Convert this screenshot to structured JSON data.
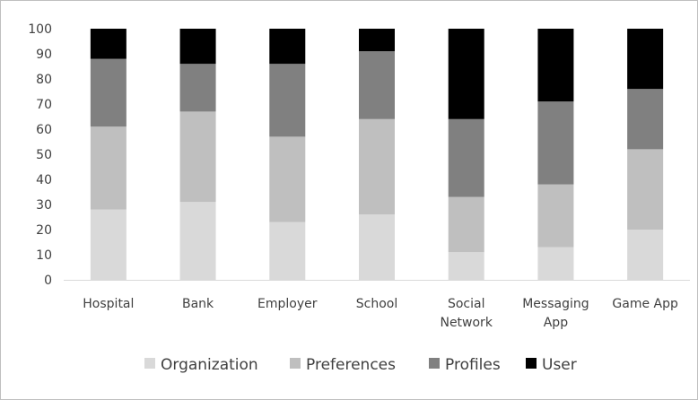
{
  "chart_data": {
    "type": "bar",
    "stacked": true,
    "categories": [
      [
        "Hospital"
      ],
      [
        "Bank"
      ],
      [
        "Employer"
      ],
      [
        "School"
      ],
      [
        "Social",
        "Network"
      ],
      [
        "Messaging",
        "App"
      ],
      [
        "Game App"
      ]
    ],
    "series": [
      {
        "name": "Organization",
        "color": "#d9d9d9",
        "values": [
          28,
          31,
          23,
          26,
          11,
          13,
          20
        ]
      },
      {
        "name": "Preferences",
        "color": "#bfbfbf",
        "values": [
          33,
          36,
          34,
          38,
          22,
          25,
          32
        ]
      },
      {
        "name": "Profiles",
        "color": "#808080",
        "values": [
          27,
          19,
          29,
          27,
          31,
          33,
          24
        ]
      },
      {
        "name": "User",
        "color": "#000000",
        "values": [
          12,
          14,
          14,
          9,
          36,
          29,
          24
        ]
      }
    ],
    "ylim": [
      0,
      100
    ],
    "yticks": [
      "0",
      "10",
      "20",
      "30",
      "40",
      "50",
      "60",
      "70",
      "80",
      "90",
      "100"
    ],
    "grid": false,
    "legend_position": "bottom"
  }
}
